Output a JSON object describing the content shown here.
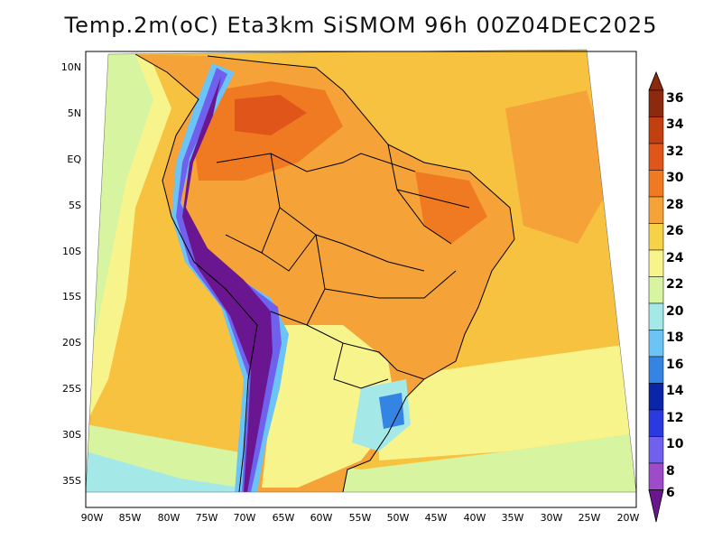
{
  "title": "Temp.2m(oC) Eta3km SiSMOM 96h 00Z04DEC2025",
  "lat_labels": [
    "10N",
    "5N",
    "EQ",
    "5S",
    "10S",
    "15S",
    "20S",
    "25S",
    "30S",
    "35S"
  ],
  "lon_labels": [
    "90W",
    "85W",
    "80W",
    "75W",
    "70W",
    "65W",
    "60W",
    "55W",
    "50W",
    "45W",
    "40W",
    "35W",
    "30W",
    "25W",
    "20W"
  ],
  "colorbar": {
    "levels": [
      "36",
      "34",
      "32",
      "30",
      "28",
      "26",
      "24",
      "22",
      "20",
      "18",
      "16",
      "14",
      "12",
      "10",
      "8",
      "6"
    ],
    "colors": [
      "#8b2a0c",
      "#c2400f",
      "#e0561a",
      "#f07a22",
      "#f5a339",
      "#f7d247",
      "#f8f48c",
      "#d7f4a0",
      "#a4e8e8",
      "#6cc3f5",
      "#3485e3",
      "#0a25a8",
      "#2a3ae0",
      "#6f60ed",
      "#9e4bc9",
      "#6a1690"
    ]
  },
  "palette": {
    "land_warm": "#f5a339",
    "land_hot": "#f07a22",
    "ocean": "#f7c23f",
    "coast_cool": "#d7f4a0",
    "andes": "#6a1690",
    "border": "#000000"
  }
}
